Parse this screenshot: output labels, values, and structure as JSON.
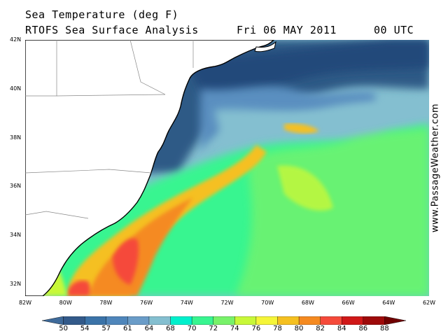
{
  "title": {
    "line1": "Sea Temperature (deg F)",
    "line2": "RTOFS Sea Surface Analysis",
    "date": "Fri 06 MAY 2011",
    "time": "00 UTC"
  },
  "watermark": "www.PassageWeather.com",
  "axes": {
    "latitude_labels": [
      "42N",
      "40N",
      "38N",
      "36N",
      "34N",
      "32N"
    ],
    "longitude_labels": [
      "82W",
      "80W",
      "78W",
      "76W",
      "74W",
      "72W",
      "70W",
      "68W",
      "66W",
      "64W",
      "62W"
    ]
  },
  "legend": {
    "values": [
      "50",
      "54",
      "57",
      "61",
      "64",
      "68",
      "70",
      "72",
      "74",
      "76",
      "78",
      "80",
      "82",
      "84",
      "86",
      "88"
    ],
    "colors": [
      "#3e6a9a",
      "#335a8a",
      "#3b73a8",
      "#4f86bb",
      "#6a9cc8",
      "#84bfd0",
      "#00f0cc",
      "#38f590",
      "#78f26a",
      "#c8f838",
      "#f5f538",
      "#f5c020",
      "#f58a20",
      "#f54a3a",
      "#d01818",
      "#9e0a0a",
      "#700000"
    ]
  },
  "colors": {
    "land": "#ffffff",
    "ocean_cold": "#2f5a86",
    "ocean_gulf": "#f58a20"
  }
}
